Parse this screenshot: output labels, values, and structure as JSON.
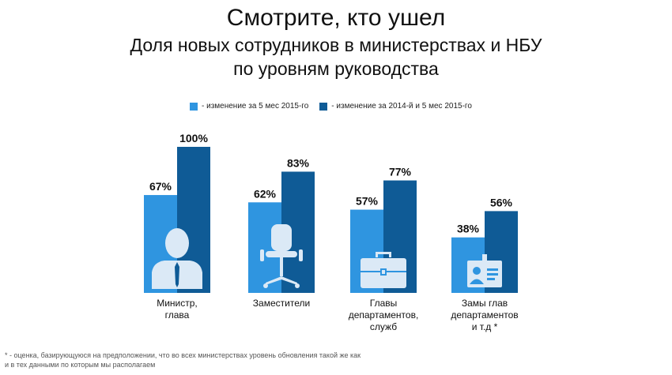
{
  "title": "Смотрите, кто ушел",
  "subtitle_line1": "Доля новых сотрудников в министерствах и НБУ",
  "subtitle_line2": "по уровням руководства",
  "footnote_line1": "* - оценка, базирующуюся на предположении, что во всех министерствах уровень обновления такой же как",
  "footnote_line2": "и в тех данными по которым мы располагаем",
  "colors": {
    "light": "#2f95e0",
    "dark": "#0f5b96",
    "icon": "#dbe9f6"
  },
  "chart_data": {
    "type": "bar",
    "categories": [
      "Министр,\nглава",
      "Заместители",
      "Главы\nдепартаментов,\nслужб",
      "Замы глав\nдепартаментов\nи т.д  *"
    ],
    "series": [
      {
        "name": "- изменение за 5 мес 2015-го",
        "values": [
          67,
          62,
          57,
          38
        ],
        "labels": [
          "67%",
          "62%",
          "57%",
          "38%"
        ]
      },
      {
        "name": "- изменение за  2014-й и 5 мес 2015-го",
        "values": [
          100,
          83,
          77,
          56
        ],
        "labels": [
          "100%",
          "83%",
          "77%",
          "56%"
        ]
      }
    ],
    "icons": [
      "person-icon",
      "office-chair-icon",
      "briefcase-icon",
      "id-badge-icon"
    ],
    "ylim": [
      0,
      100
    ],
    "legend_position": "top-center"
  }
}
